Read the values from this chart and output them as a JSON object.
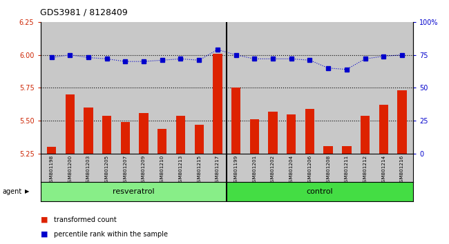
{
  "title": "GDS3981 / 8128409",
  "samples": [
    "GSM801198",
    "GSM801200",
    "GSM801203",
    "GSM801205",
    "GSM801207",
    "GSM801209",
    "GSM801210",
    "GSM801213",
    "GSM801215",
    "GSM801217",
    "GSM801199",
    "GSM801201",
    "GSM801202",
    "GSM801204",
    "GSM801206",
    "GSM801208",
    "GSM801211",
    "GSM801212",
    "GSM801214",
    "GSM801216"
  ],
  "transformed_count": [
    5.3,
    5.7,
    5.6,
    5.54,
    5.49,
    5.56,
    5.44,
    5.54,
    5.47,
    6.01,
    5.75,
    5.51,
    5.57,
    5.55,
    5.59,
    5.31,
    5.31,
    5.54,
    5.62,
    5.73
  ],
  "percentile_rank": [
    73,
    75,
    73,
    72,
    70,
    70,
    71,
    72,
    71,
    79,
    75,
    72,
    72,
    72,
    71,
    65,
    64,
    72,
    74,
    75
  ],
  "resveratrol_count": 10,
  "control_count": 10,
  "ylim_left": [
    5.25,
    6.25
  ],
  "ylim_right": [
    0,
    100
  ],
  "yticks_left": [
    5.25,
    5.5,
    5.75,
    6.0,
    6.25
  ],
  "yticks_right": [
    0,
    25,
    50,
    75,
    100
  ],
  "bar_color": "#dd2200",
  "dot_color": "#0000cc",
  "bg_color": "#c8c8c8",
  "resveratrol_color": "#88ee88",
  "control_color": "#44dd44",
  "legend_bar_label": "transformed count",
  "legend_dot_label": "percentile rank within the sample",
  "agent_label": "agent",
  "resveratrol_label": "resveratrol",
  "control_label": "control",
  "dotted_line_color": "#000000",
  "grid_values": [
    5.5,
    5.75,
    6.0
  ],
  "right_axis_label_color": "#0000cc",
  "left_axis_label_color": "#cc2200"
}
